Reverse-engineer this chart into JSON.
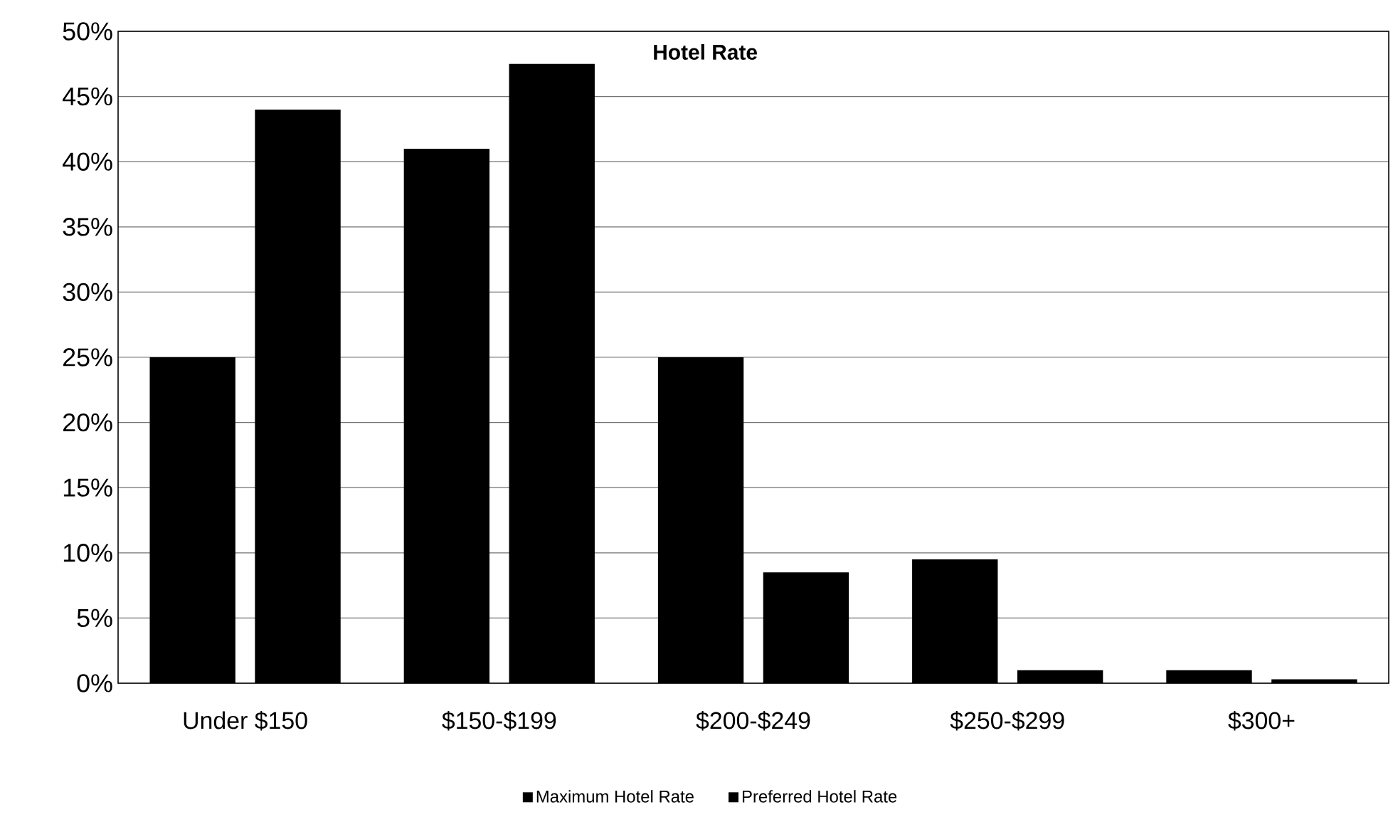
{
  "chart_data": {
    "type": "bar",
    "title": "Hotel Rate",
    "categories": [
      "Under $150",
      "$150-$199",
      "$200-$249",
      "$250-$299",
      "$300+"
    ],
    "series": [
      {
        "name": "Maximum Hotel Rate",
        "color": "#000000",
        "values": [
          25,
          41,
          25,
          9.5,
          1
        ]
      },
      {
        "name": "Preferred Hotel Rate",
        "color": "#000000",
        "values": [
          44,
          47.5,
          8.5,
          1,
          0.3
        ]
      }
    ],
    "ylim": [
      0,
      50
    ],
    "yticks": [
      {
        "value": 0,
        "label": "0%"
      },
      {
        "value": 5,
        "label": "5%"
      },
      {
        "value": 10,
        "label": "10%"
      },
      {
        "value": 15,
        "label": "15%"
      },
      {
        "value": 20,
        "label": "20%"
      },
      {
        "value": 25,
        "label": "25%"
      },
      {
        "value": 30,
        "label": "30%"
      },
      {
        "value": 35,
        "label": "35%"
      },
      {
        "value": 40,
        "label": "40%"
      },
      {
        "value": 45,
        "label": "45%"
      },
      {
        "value": 50,
        "label": "50%"
      }
    ],
    "grid": "y",
    "legend": "bottom"
  }
}
